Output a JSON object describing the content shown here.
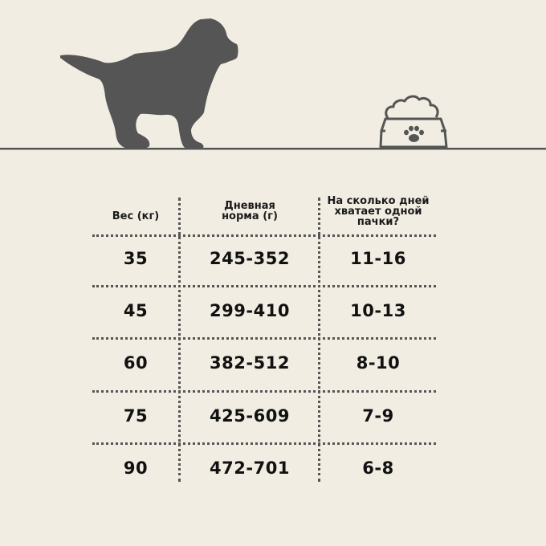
{
  "colors": {
    "background": "#f1ede2",
    "silhouette": "#555555",
    "text": "#111111"
  },
  "illustration": {
    "dog": "puppy-silhouette-icon",
    "bowl": "food-bowl-paw-icon"
  },
  "table": {
    "headers": [
      "Вес (кг)",
      "Дневная норма (г)",
      "На сколько дней хватает одной пачки?"
    ],
    "header_lines": [
      [
        "Вес (кг)"
      ],
      [
        "Дневная",
        "норма (г)"
      ],
      [
        "На сколько дней",
        "хватает одной",
        "пачки?"
      ]
    ],
    "rows": [
      [
        "35",
        "245-352",
        "11-16"
      ],
      [
        "45",
        "299-410",
        "10-13"
      ],
      [
        "60",
        "382-512",
        "8-10"
      ],
      [
        "75",
        "425-609",
        "7-9"
      ],
      [
        "90",
        "472-701",
        "6-8"
      ]
    ]
  }
}
